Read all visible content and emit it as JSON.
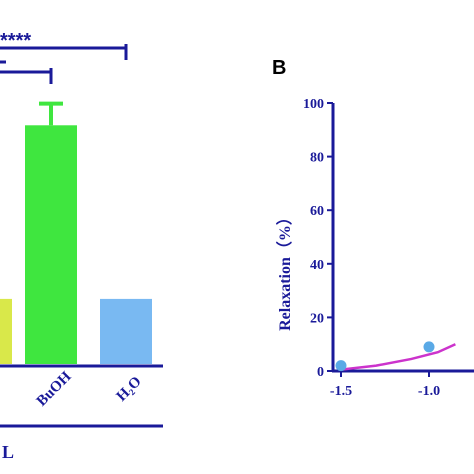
{
  "chart_data": [
    {
      "type": "bar",
      "categories": [
        "",
        "BuOH",
        "H₂O"
      ],
      "values": [
        18,
        66,
        18
      ],
      "error_upper": [
        null,
        72,
        null
      ],
      "series_colors": [
        "#d9e84a",
        "#3fe63f",
        "#79b9f2"
      ],
      "ylim": [
        0,
        100
      ],
      "xlabel_fragment": "L",
      "significance": [
        {
          "label": "****",
          "span": [
            "left-edge",
            "H₂O"
          ]
        },
        {
          "label": "",
          "span": [
            "left-edge",
            "BuOH"
          ]
        }
      ]
    },
    {
      "type": "scatter",
      "panel_label": "B",
      "ylabel": "Relaxation（%）",
      "yticks": [
        "0",
        "20",
        "40",
        "60",
        "80",
        "100"
      ],
      "xticks": [
        "-1.5",
        "-1.0"
      ],
      "ylim": [
        0,
        100
      ],
      "xlim": [
        -1.55,
        -0.55
      ],
      "points": [
        {
          "x": -1.5,
          "y": 2
        },
        {
          "x": -1.0,
          "y": 9
        }
      ],
      "curve": [
        {
          "x": -1.5,
          "y": 0.5
        },
        {
          "x": -1.3,
          "y": 2
        },
        {
          "x": -1.1,
          "y": 4.5
        },
        {
          "x": -0.95,
          "y": 7
        },
        {
          "x": -0.85,
          "y": 10
        }
      ],
      "point_color": "#5aa9e6",
      "curve_color": "#cc33cc",
      "axis_color": "#1a1a99"
    }
  ]
}
